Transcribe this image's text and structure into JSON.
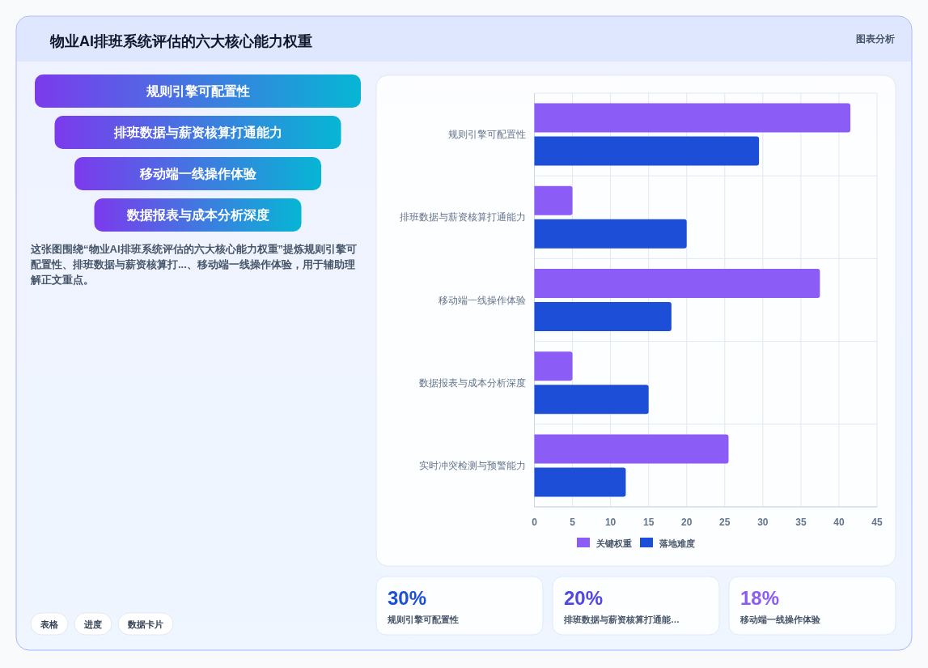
{
  "chart_data": [
    {
      "type": "other",
      "title": "物业AI排班系统评估的六大核心能力权重",
      "categories": [
        "规则引擎可配置性",
        "排班数据与薪资核算打通能力",
        "移动端一线操作体验",
        "数据报表与成本分析深度"
      ],
      "annotations": [
        "这张图围绕“物业AI排班系统评估的六大核心能力权重”提炼规则引擎可配置性、排班数据与薪资核算打...、移动端一线操作体验，用于辅助理解正文重点。",
        "图表分析",
        "表格",
        "进度",
        "数据卡片"
      ]
    },
    {
      "type": "bar",
      "orientation": "horizontal",
      "categories": [
        "规则引擎可配置性",
        "排班数据与薪资核算打通能力",
        "移动端一线操作体验",
        "数据报表与成本分析深度",
        "实时冲突检测与预警能力"
      ],
      "series": [
        {
          "name": "关键权重",
          "color": "#8b5cf6",
          "values": [
            41.5,
            5,
            37.5,
            5,
            25.5
          ]
        },
        {
          "name": "落地难度",
          "color": "#1d4ed8",
          "values": [
            29.5,
            20,
            18,
            15,
            12
          ]
        }
      ],
      "xlim": [
        0,
        45
      ],
      "xticks": [
        0,
        5,
        10,
        15,
        20,
        25,
        30,
        35,
        40,
        45
      ],
      "grid": true,
      "legend": "bottom"
    },
    {
      "type": "other",
      "categories": [
        "规则引擎可配置性",
        "排班数据与薪资核算打通能…",
        "移动端一线操作体验"
      ],
      "annotations": [
        "30%",
        "20%",
        "18%"
      ]
    }
  ]
}
